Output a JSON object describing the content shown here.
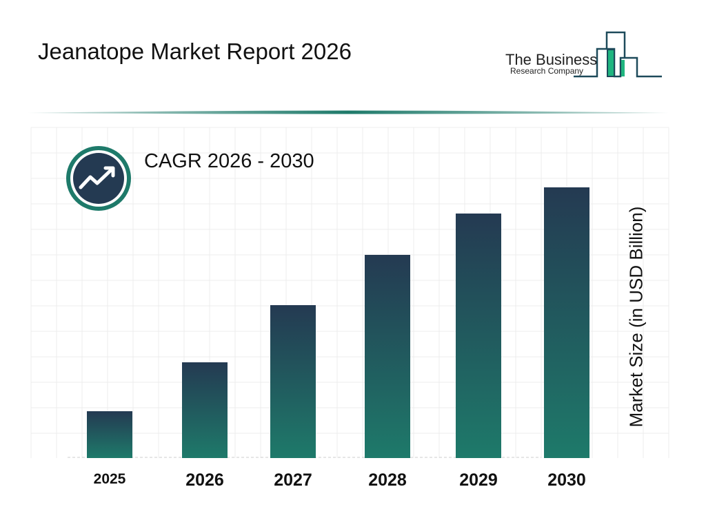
{
  "header": {
    "title": "Jeanatope Market Report 2026"
  },
  "logo": {
    "line1": "The Business",
    "line2": "Research Company",
    "colors": {
      "dark": "#1d4a5a",
      "green": "#1fb57f"
    }
  },
  "badge": {
    "icon": "trend-up-arrow-icon",
    "text": "CAGR 2026 - 2030",
    "ring_color": "#1e7a6a",
    "fill_color": "#243a52"
  },
  "chart_data": {
    "type": "bar",
    "title": "",
    "xlabel": "",
    "ylabel": "Market Size (in USD Billion)",
    "categories": [
      "2025",
      "2026",
      "2027",
      "2028",
      "2029",
      "2030"
    ],
    "values": [
      6.8,
      13.9,
      22.2,
      29.5,
      35.5,
      39.3
    ],
    "grid": true,
    "legend": "none",
    "bar_gradient": {
      "top": "#243a52",
      "bottom": "#1e7a6a"
    }
  }
}
